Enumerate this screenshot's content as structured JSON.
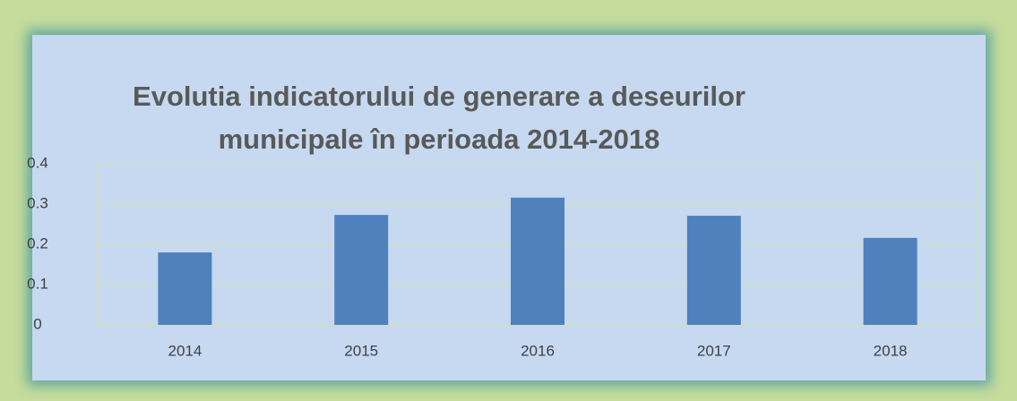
{
  "chart_data": {
    "type": "bar",
    "title": [
      "Evolutia indicatorului  de generare a deseurilor",
      "municipale în perioada 2014-2018"
    ],
    "categories": [
      "2014",
      "2015",
      "2016",
      "2017",
      "2018"
    ],
    "values": [
      0.18,
      0.273,
      0.316,
      0.271,
      0.216
    ],
    "color": "#4f81bd",
    "ylim": [
      0,
      0.4
    ],
    "yticks": [
      0,
      0.1,
      0.2,
      0.3,
      0.4
    ],
    "grid": true
  }
}
